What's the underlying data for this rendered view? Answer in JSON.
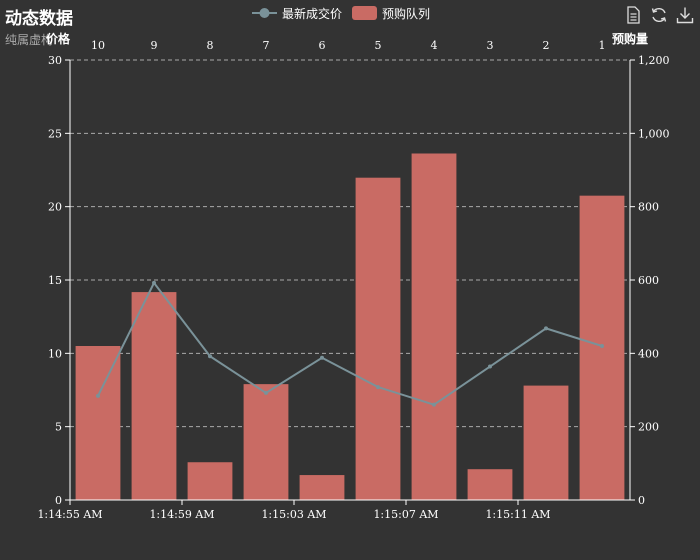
{
  "title": "动态数据",
  "subtitle": "纯属虚构",
  "legend": {
    "line_label": "最新成交价",
    "bar_label": "预购队列"
  },
  "toolbox": {
    "icons": [
      "data-view-icon",
      "restore-icon",
      "save-image-icon"
    ]
  },
  "colors": {
    "background": "#333333",
    "bar": "#c96b64",
    "line": "#7a9299",
    "axis": "#ffffff",
    "grid": "#aaaaaa"
  },
  "chart_data": {
    "type": "bar",
    "x_bottom_labels": [
      "1:14:55 AM",
      "1:14:59 AM",
      "1:15:03 AM",
      "1:15:07 AM",
      "1:15:11 AM"
    ],
    "x_top_categories": [
      "10",
      "9",
      "8",
      "7",
      "6",
      "5",
      "4",
      "3",
      "2",
      "1"
    ],
    "y_left": {
      "name": "价格",
      "min": 0,
      "max": 30,
      "ticks": [
        "0",
        "5",
        "10",
        "15",
        "20",
        "25",
        "30"
      ]
    },
    "y_right": {
      "name": "预购量",
      "min": 0,
      "max": 1200,
      "ticks": [
        "0",
        "200",
        "400",
        "600",
        "800",
        "1,000",
        "1,200"
      ]
    },
    "grid": true,
    "legend_position": "top-center",
    "series": [
      {
        "name": "最新成交价",
        "type": "line",
        "axis": "left",
        "values": [
          7.1,
          14.8,
          9.8,
          7.3,
          9.7,
          7.7,
          6.5,
          9.1,
          11.7,
          10.5
        ]
      },
      {
        "name": "预购队列",
        "type": "bar",
        "axis": "right",
        "values": [
          420,
          567,
          103,
          316,
          68,
          879,
          945,
          84,
          312,
          830
        ]
      }
    ]
  }
}
